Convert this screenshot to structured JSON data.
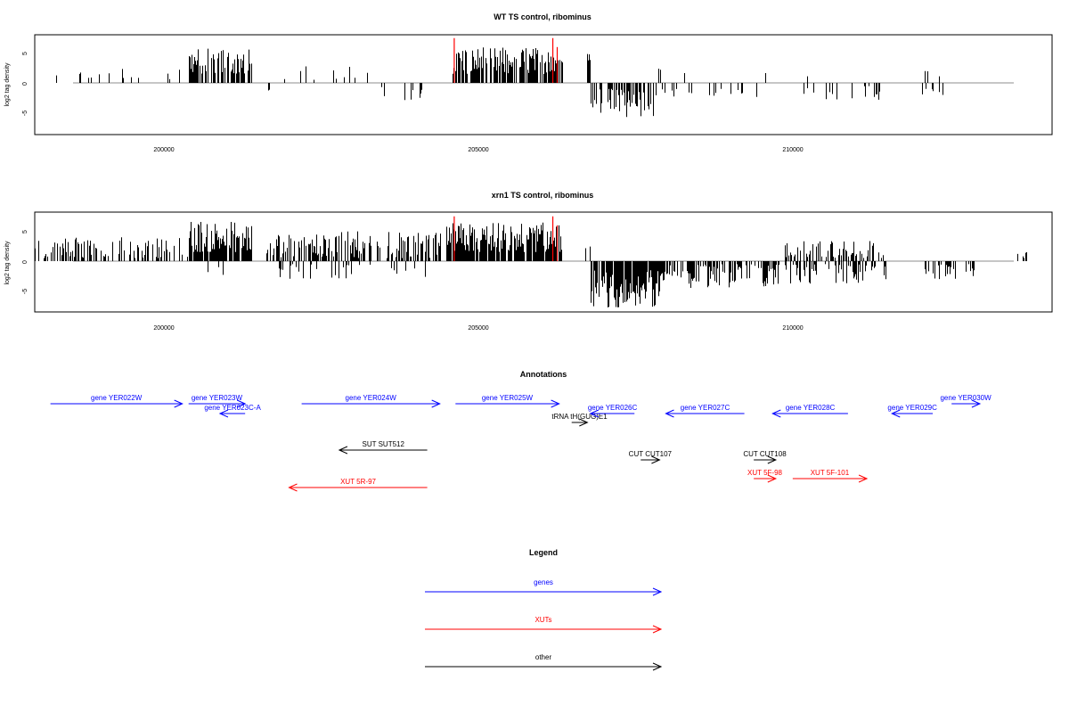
{
  "chart_data": [
    {
      "type": "bar",
      "title": "WT TS control, ribominus",
      "ylabel": "log2 tag density",
      "xlabel": "",
      "xlim": [
        198550,
        214750
      ],
      "ylim": [
        -8.5,
        8.5
      ],
      "xticks": [
        200000,
        205000,
        210000
      ],
      "xtick_labels": [
        "200000",
        "205000",
        "210000"
      ],
      "yticks": [
        5,
        0,
        -5
      ],
      "ytick_labels": [
        "5",
        "0",
        "-5"
      ],
      "grid": false,
      "legend": "none",
      "segments": [
        {
          "from": 198600,
          "to": 199500,
          "density": 0.12,
          "min": 0.5,
          "max": 2.5,
          "sign": 1
        },
        {
          "from": 199500,
          "to": 201000,
          "density": 0.1,
          "min": 0.5,
          "max": 2.5,
          "sign": 1
        },
        {
          "from": 201000,
          "to": 202000,
          "density": 0.7,
          "min": 1.5,
          "max": 6.0,
          "sign": 1
        },
        {
          "from": 202200,
          "to": 202300,
          "density": 0.3,
          "min": 1.0,
          "max": 2.5,
          "sign": -1
        },
        {
          "from": 202500,
          "to": 204000,
          "density": 0.07,
          "min": 0.5,
          "max": 3.0,
          "sign": 1
        },
        {
          "from": 203800,
          "to": 205000,
          "density": 0.07,
          "min": 0.5,
          "max": 3.0,
          "sign": -1
        },
        {
          "from": 205200,
          "to": 206950,
          "density": 0.75,
          "min": 1.5,
          "max": 6.0,
          "sign": 1
        },
        {
          "from": 207350,
          "to": 207400,
          "density": 0.5,
          "min": 3.5,
          "max": 5.0,
          "sign": 1
        },
        {
          "from": 207400,
          "to": 208400,
          "density": 0.5,
          "min": 1.0,
          "max": 6.0,
          "sign": -1
        },
        {
          "from": 208400,
          "to": 210300,
          "density": 0.12,
          "min": 1.0,
          "max": 2.5,
          "sign": -1
        },
        {
          "from": 208400,
          "to": 210300,
          "density": 0.03,
          "min": 1.0,
          "max": 2.5,
          "sign": 1
        },
        {
          "from": 210700,
          "to": 212000,
          "density": 0.08,
          "min": 0.5,
          "max": 3.0,
          "sign": -1
        },
        {
          "from": 210700,
          "to": 212000,
          "density": 0.03,
          "min": 1.0,
          "max": 2.0,
          "sign": 1
        },
        {
          "from": 212500,
          "to": 213200,
          "density": 0.05,
          "min": 1.0,
          "max": 2.5,
          "sign": 1
        },
        {
          "from": 212600,
          "to": 213200,
          "density": 0.18,
          "min": 0.5,
          "max": 3.0,
          "sign": -1
        }
      ],
      "highlights": [
        {
          "x": 205230,
          "y": 7.5
        },
        {
          "x": 206800,
          "y": 7.5
        },
        {
          "x": 206870,
          "y": 6.0
        }
      ]
    },
    {
      "type": "bar",
      "title": "xrn1 TS control, ribominus",
      "ylabel": "log2 tag density",
      "xlabel": "",
      "xlim": [
        198550,
        214750
      ],
      "ylim": [
        -8.5,
        8.5
      ],
      "xticks": [
        200000,
        205000,
        210000
      ],
      "xtick_labels": [
        "200000",
        "205000",
        "210000"
      ],
      "yticks": [
        5,
        0,
        -5
      ],
      "ytick_labels": [
        "5",
        "0",
        "-5"
      ],
      "grid": false,
      "legend": "none",
      "segments": [
        {
          "from": 198550,
          "to": 201000,
          "density": 0.35,
          "min": 0.5,
          "max": 4.0,
          "sign": 1
        },
        {
          "from": 201000,
          "to": 202000,
          "density": 0.9,
          "min": 1.5,
          "max": 7.0,
          "sign": 1
        },
        {
          "from": 201000,
          "to": 202000,
          "density": 0.05,
          "min": 1.0,
          "max": 3.0,
          "sign": -1
        },
        {
          "from": 202200,
          "to": 205000,
          "density": 0.55,
          "min": 0.5,
          "max": 5.0,
          "sign": 1
        },
        {
          "from": 202200,
          "to": 205000,
          "density": 0.15,
          "min": 0.5,
          "max": 3.0,
          "sign": -1
        },
        {
          "from": 205100,
          "to": 206950,
          "density": 0.9,
          "min": 1.5,
          "max": 6.5,
          "sign": 1
        },
        {
          "from": 207300,
          "to": 207400,
          "density": 0.5,
          "min": 2.0,
          "max": 5.0,
          "sign": 1
        },
        {
          "from": 207400,
          "to": 208500,
          "density": 0.9,
          "min": 1.5,
          "max": 8.0,
          "sign": -1
        },
        {
          "from": 208500,
          "to": 210400,
          "density": 0.55,
          "min": 0.5,
          "max": 4.5,
          "sign": -1
        },
        {
          "from": 210500,
          "to": 212100,
          "density": 0.4,
          "min": 0.5,
          "max": 3.5,
          "sign": 1
        },
        {
          "from": 210500,
          "to": 212100,
          "density": 0.45,
          "min": 0.5,
          "max": 4.0,
          "sign": -1
        },
        {
          "from": 212700,
          "to": 213500,
          "density": 0.45,
          "min": 0.5,
          "max": 3.0,
          "sign": -1
        },
        {
          "from": 214200,
          "to": 214400,
          "density": 0.4,
          "min": 0.5,
          "max": 1.5,
          "sign": 1
        }
      ],
      "highlights": [
        {
          "x": 205230,
          "y": 7.5
        },
        {
          "x": 206800,
          "y": 7.5
        },
        {
          "x": 206870,
          "y": 6.0
        }
      ]
    }
  ],
  "annotations": {
    "title": "Annotations",
    "colors": {
      "gene": "#0000ff",
      "xut": "#ff0000",
      "other": "#000000"
    },
    "features": [
      {
        "label": "gene YER022W",
        "kind": "gene",
        "start": 198800,
        "end": 200900,
        "dir": "right",
        "row": 0
      },
      {
        "label": "gene YER023W",
        "kind": "gene",
        "start": 201000,
        "end": 201900,
        "dir": "right",
        "row": 0
      },
      {
        "label": "gene YER023C-A",
        "kind": "gene",
        "start": 201500,
        "end": 201900,
        "dir": "left",
        "row": 1
      },
      {
        "label": "gene YER024W",
        "kind": "gene",
        "start": 202800,
        "end": 205000,
        "dir": "right",
        "row": 0
      },
      {
        "label": "gene YER025W",
        "kind": "gene",
        "start": 205250,
        "end": 206900,
        "dir": "right",
        "row": 0
      },
      {
        "label": "tRNA tH(GUG)E1",
        "kind": "other",
        "start": 207100,
        "end": 207350,
        "dir": "right",
        "row": 2
      },
      {
        "label": "gene YER026C",
        "kind": "gene",
        "start": 207400,
        "end": 208100,
        "dir": "left",
        "row": 1
      },
      {
        "label": "gene YER027C",
        "kind": "gene",
        "start": 208600,
        "end": 209850,
        "dir": "left",
        "row": 1
      },
      {
        "label": "gene YER028C",
        "kind": "gene",
        "start": 210300,
        "end": 211500,
        "dir": "left",
        "row": 1
      },
      {
        "label": "gene YER029C",
        "kind": "gene",
        "start": 212200,
        "end": 212850,
        "dir": "left",
        "row": 1
      },
      {
        "label": "gene YER030W",
        "kind": "gene",
        "start": 213150,
        "end": 213600,
        "dir": "right",
        "row": 0
      },
      {
        "label": "SUT SUT512",
        "kind": "other",
        "start": 203400,
        "end": 204800,
        "dir": "left",
        "row": 3
      },
      {
        "label": "CUT CUT107",
        "kind": "other",
        "start": 208200,
        "end": 208500,
        "dir": "right",
        "row": 4
      },
      {
        "label": "CUT CUT108",
        "kind": "other",
        "start": 210000,
        "end": 210350,
        "dir": "right",
        "row": 4
      },
      {
        "label": "XUT 5F-98",
        "kind": "xut",
        "start": 210000,
        "end": 210350,
        "dir": "right",
        "row": 5
      },
      {
        "label": "XUT 5F-101",
        "kind": "xut",
        "start": 210620,
        "end": 211800,
        "dir": "right",
        "row": 5
      },
      {
        "label": "XUT 5R-97",
        "kind": "xut",
        "start": 202600,
        "end": 204800,
        "dir": "left",
        "row": 6
      }
    ]
  },
  "legend": {
    "title": "Legend",
    "items": [
      {
        "label": "genes",
        "kind": "gene"
      },
      {
        "label": "XUTs",
        "kind": "xut"
      },
      {
        "label": "other",
        "kind": "other"
      }
    ]
  }
}
